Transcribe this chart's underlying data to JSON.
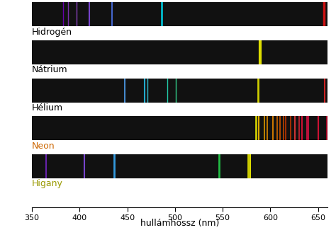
{
  "xlim": [
    350,
    660
  ],
  "elements": [
    "Hidrogén",
    "Nátrium",
    "Hélium",
    "Neon",
    "Higany"
  ],
  "label_colors": [
    "black",
    "black",
    "black",
    "#cc6600",
    "#999900"
  ],
  "background_color": "#111111",
  "xlabel": "hullámhossz (nm)",
  "spectra": {
    "Hidrogén": [
      {
        "wl": 383,
        "color": "#6600aa",
        "lw": 1.0
      },
      {
        "wl": 388,
        "color": "#7730aa",
        "lw": 1.0
      },
      {
        "wl": 397,
        "color": "#8840bb",
        "lw": 1.0
      },
      {
        "wl": 410,
        "color": "#7744cc",
        "lw": 1.5
      },
      {
        "wl": 434,
        "color": "#4466cc",
        "lw": 1.5
      },
      {
        "wl": 486,
        "color": "#00bbcc",
        "lw": 2.0
      },
      {
        "wl": 656,
        "color": "#cc1111",
        "lw": 2.5
      }
    ],
    "Nátrium": [
      {
        "wl": 589,
        "color": "#dddd00",
        "lw": 3.0
      }
    ],
    "Hélium": [
      {
        "wl": 447,
        "color": "#4488cc",
        "lw": 1.5
      },
      {
        "wl": 468,
        "color": "#22aacc",
        "lw": 1.5
      },
      {
        "wl": 471,
        "color": "#33bbcc",
        "lw": 1.0
      },
      {
        "wl": 492,
        "color": "#22ccaa",
        "lw": 1.0
      },
      {
        "wl": 501,
        "color": "#33cc88",
        "lw": 1.0
      },
      {
        "wl": 587,
        "color": "#cccc00",
        "lw": 2.0
      },
      {
        "wl": 657,
        "color": "#cc2222",
        "lw": 1.5
      }
    ],
    "Neon": [
      {
        "wl": 585,
        "color": "#cccc00",
        "lw": 2.0
      },
      {
        "wl": 588,
        "color": "#ddaa00",
        "lw": 1.5
      },
      {
        "wl": 594,
        "color": "#dd9900",
        "lw": 1.2
      },
      {
        "wl": 597,
        "color": "#dd8800",
        "lw": 1.2
      },
      {
        "wl": 603,
        "color": "#cc7700",
        "lw": 1.5
      },
      {
        "wl": 607,
        "color": "#cc6600",
        "lw": 1.2
      },
      {
        "wl": 610,
        "color": "#cc5500",
        "lw": 1.2
      },
      {
        "wl": 614,
        "color": "#bb4400",
        "lw": 1.2
      },
      {
        "wl": 616,
        "color": "#bb3300",
        "lw": 1.2
      },
      {
        "wl": 621,
        "color": "#bb3300",
        "lw": 1.2
      },
      {
        "wl": 626,
        "color": "#cc3333",
        "lw": 1.5
      },
      {
        "wl": 630,
        "color": "#cc2233",
        "lw": 1.2
      },
      {
        "wl": 633,
        "color": "#cc1133",
        "lw": 1.5
      },
      {
        "wl": 638,
        "color": "#dd1144",
        "lw": 1.2
      },
      {
        "wl": 640,
        "color": "#dd1144",
        "lw": 1.2
      },
      {
        "wl": 650,
        "color": "#cc1133",
        "lw": 1.5
      },
      {
        "wl": 659,
        "color": "#bb0022",
        "lw": 1.2
      }
    ],
    "Higany": [
      {
        "wl": 365,
        "color": "#6622aa",
        "lw": 1.5
      },
      {
        "wl": 405,
        "color": "#7744cc",
        "lw": 1.5
      },
      {
        "wl": 436,
        "color": "#3399dd",
        "lw": 2.0
      },
      {
        "wl": 546,
        "color": "#22bb44",
        "lw": 2.0
      },
      {
        "wl": 577,
        "color": "#cccc00",
        "lw": 2.0
      },
      {
        "wl": 579,
        "color": "#dddd00",
        "lw": 1.5
      }
    ]
  },
  "xticks": [
    350,
    400,
    450,
    500,
    550,
    600,
    650
  ],
  "xtick_labels": [
    "350",
    "400",
    "450",
    "500",
    "550",
    "600",
    "650"
  ]
}
